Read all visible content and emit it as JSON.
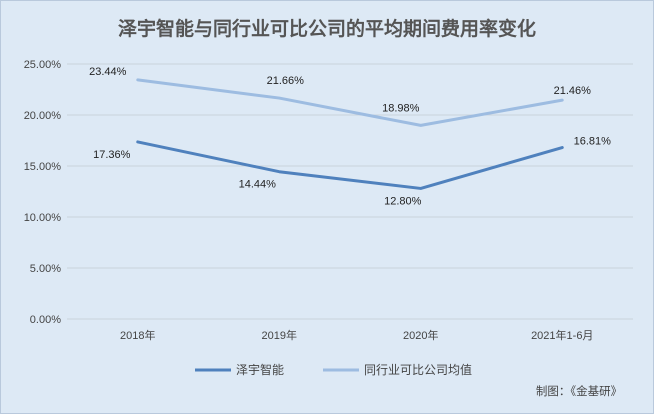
{
  "chart_data": {
    "type": "line",
    "title": "泽宇智能与同行业可比公司的平均期间费用率变化",
    "categories": [
      "2018年",
      "2019年",
      "2020年",
      "2021年1-6月"
    ],
    "series": [
      {
        "name": "泽宇智能",
        "values": [
          17.36,
          14.44,
          12.8,
          16.81
        ],
        "labels": [
          "17.36%",
          "14.44%",
          "12.80%",
          "16.81%"
        ],
        "color": "#4f81bd"
      },
      {
        "name": "同行业可比公司均值",
        "values": [
          23.44,
          21.66,
          18.98,
          21.46
        ],
        "labels": [
          "23.44%",
          "21.66%",
          "18.98%",
          "21.46%"
        ],
        "color": "#9dbce1"
      }
    ],
    "ylim": [
      0,
      25
    ],
    "yticks": [
      0,
      5,
      10,
      15,
      20,
      25
    ],
    "ytick_labels": [
      "0.00%",
      "5.00%",
      "10.00%",
      "15.00%",
      "20.00%",
      "25.00%"
    ],
    "grid": true,
    "legend_position": "bottom-center"
  },
  "credit": "制图：《金基研》",
  "colors": {
    "background": "#dde9f5",
    "grid": "#c9d2dc",
    "title": "#555555"
  }
}
